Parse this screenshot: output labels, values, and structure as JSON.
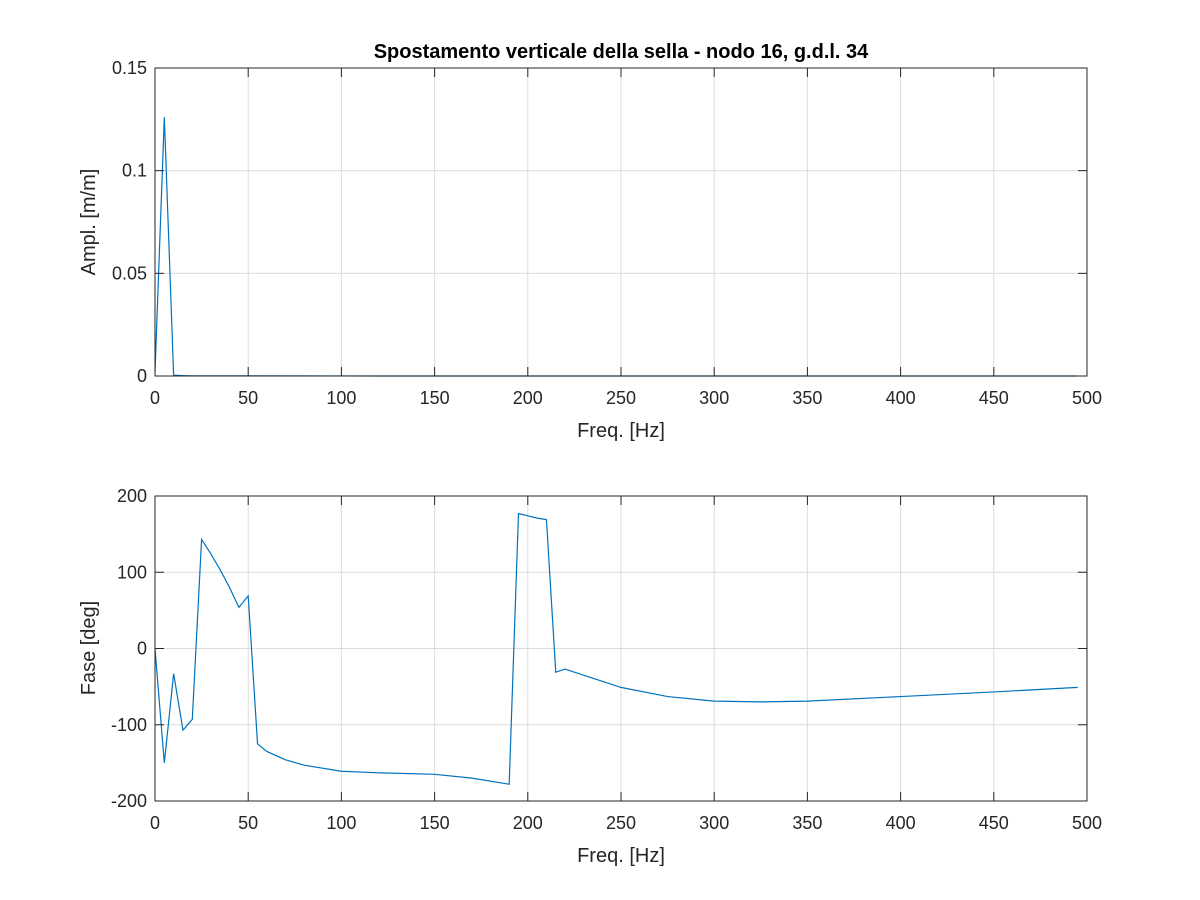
{
  "chart_data": [
    {
      "type": "line",
      "title": "Spostamento verticale della sella - nodo 16, g.d.l. 34",
      "xlabel": "Freq. [Hz]",
      "ylabel": "Ampl. [m/m]",
      "xlim": [
        0,
        500
      ],
      "ylim": [
        0,
        0.15
      ],
      "xticks": [
        "0",
        "50",
        "100",
        "150",
        "200",
        "250",
        "300",
        "350",
        "400",
        "450",
        "500"
      ],
      "yticks": [
        "0",
        "0.05",
        "0.1",
        "0.15"
      ],
      "grid": true,
      "color": "#0072BD",
      "series": [
        {
          "x": [
            0,
            5,
            10,
            15,
            20,
            50,
            100,
            150,
            200,
            250,
            300,
            350,
            400,
            450,
            495
          ],
          "y": [
            0.002,
            0.126,
            0.0004,
            0.0002,
            0.0001,
            5e-05,
            2e-05,
            1e-05,
            1e-05,
            1e-05,
            1e-05,
            1e-05,
            1e-05,
            1e-05,
            1e-05
          ]
        }
      ]
    },
    {
      "type": "line",
      "title": "",
      "xlabel": "Freq. [Hz]",
      "ylabel": "Fase [deg]",
      "xlim": [
        0,
        500
      ],
      "ylim": [
        -200,
        200
      ],
      "xticks": [
        "0",
        "50",
        "100",
        "150",
        "200",
        "250",
        "300",
        "350",
        "400",
        "450",
        "500"
      ],
      "yticks": [
        "-200",
        "-100",
        "0",
        "100",
        "200"
      ],
      "grid": true,
      "color": "#0072BD",
      "series": [
        {
          "x": [
            0,
            5,
            10,
            15,
            20,
            25,
            30,
            35,
            40,
            45,
            50,
            55,
            60,
            70,
            80,
            100,
            120,
            150,
            170,
            190,
            195,
            200,
            205,
            210,
            215,
            220,
            225,
            250,
            275,
            300,
            325,
            350,
            400,
            450,
            495
          ],
          "y": [
            0,
            -150,
            -33,
            -107,
            -93,
            143,
            124,
            103,
            80,
            54,
            69,
            -125,
            -135,
            -146,
            -153,
            -161,
            -163,
            -165,
            -170,
            -178,
            177,
            174,
            171,
            169,
            -31,
            -27,
            -31,
            -51,
            -63,
            -69,
            -70,
            -69,
            -63,
            -57,
            -51
          ]
        }
      ]
    }
  ]
}
